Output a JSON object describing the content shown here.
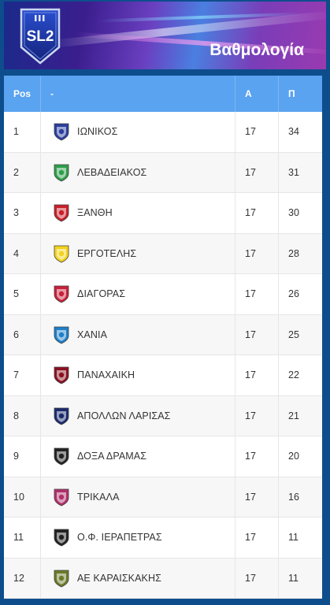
{
  "banner": {
    "logo_text": "SL2",
    "title": "Βαθμολογία"
  },
  "table": {
    "headers": {
      "pos": "Pos",
      "team": "-",
      "a": "Α",
      "p": "Π"
    },
    "rows": [
      {
        "pos": "1",
        "team": "ΙΩΝΙΚΟΣ",
        "a": "17",
        "p": "34",
        "crest": "ionikos-crest-icon",
        "color": "#2a3f9e"
      },
      {
        "pos": "2",
        "team": "ΛΕΒΑΔΕΙΑΚΟΣ",
        "a": "17",
        "p": "31",
        "crest": "levadiakos-crest-icon",
        "color": "#2e9e4a"
      },
      {
        "pos": "3",
        "team": "ΞΑΝΘΗ",
        "a": "17",
        "p": "30",
        "crest": "xanthi-crest-icon",
        "color": "#c8202a"
      },
      {
        "pos": "4",
        "team": "ΕΡΓΟΤΕΛΗΣ",
        "a": "17",
        "p": "28",
        "crest": "ergotelis-crest-icon",
        "color": "#f2d21c"
      },
      {
        "pos": "5",
        "team": "ΔΙΑΓΟΡΑΣ",
        "a": "17",
        "p": "26",
        "crest": "diagoras-crest-icon",
        "color": "#c8203a"
      },
      {
        "pos": "6",
        "team": "ΧΑΝΙΑ",
        "a": "17",
        "p": "25",
        "crest": "chania-crest-icon",
        "color": "#1f7ec8"
      },
      {
        "pos": "7",
        "team": "ΠΑΝΑΧΑΙΚΗ",
        "a": "17",
        "p": "22",
        "crest": "panachaiki-crest-icon",
        "color": "#8a1020"
      },
      {
        "pos": "8",
        "team": "ΑΠΟΛΛΩΝ ΛΑΡΙΣΑΣ",
        "a": "17",
        "p": "21",
        "crest": "apollon-larisas-crest-icon",
        "color": "#1a2a6e"
      },
      {
        "pos": "9",
        "team": "ΔΟΞΑ ΔΡΑΜΑΣ",
        "a": "17",
        "p": "20",
        "crest": "doxa-dramas-crest-icon",
        "color": "#222222"
      },
      {
        "pos": "10",
        "team": "ΤΡΙΚΑΛΑ",
        "a": "17",
        "p": "16",
        "crest": "trikala-crest-icon",
        "color": "#b0306a"
      },
      {
        "pos": "11",
        "team": "Ο.Φ. ΙΕΡΑΠΕΤΡΑΣ",
        "a": "17",
        "p": "11",
        "crest": "of-ierapetras-crest-icon",
        "color": "#222222"
      },
      {
        "pos": "12",
        "team": "ΑΕ ΚΑΡΑΙΣΚΑΚΗΣ",
        "a": "17",
        "p": "11",
        "crest": "ae-karaiskakis-crest-icon",
        "color": "#6a7a2a"
      }
    ]
  }
}
